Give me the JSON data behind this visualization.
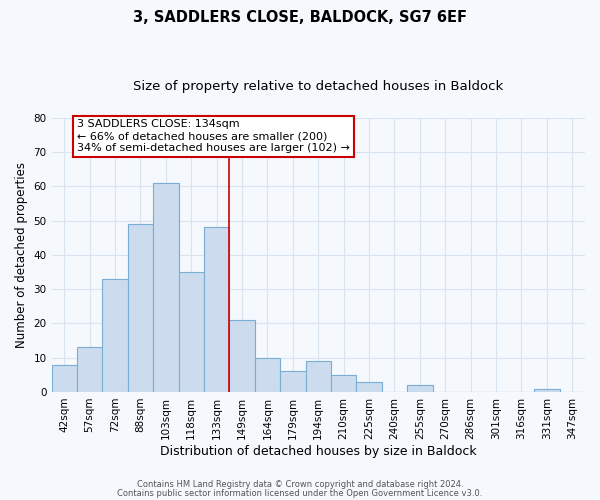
{
  "title": "3, SADDLERS CLOSE, BALDOCK, SG7 6EF",
  "subtitle": "Size of property relative to detached houses in Baldock",
  "xlabel": "Distribution of detached houses by size in Baldock",
  "ylabel": "Number of detached properties",
  "bar_labels": [
    "42sqm",
    "57sqm",
    "72sqm",
    "88sqm",
    "103sqm",
    "118sqm",
    "133sqm",
    "149sqm",
    "164sqm",
    "179sqm",
    "194sqm",
    "210sqm",
    "225sqm",
    "240sqm",
    "255sqm",
    "270sqm",
    "286sqm",
    "301sqm",
    "316sqm",
    "331sqm",
    "347sqm"
  ],
  "bar_values": [
    8,
    13,
    33,
    49,
    61,
    35,
    48,
    21,
    10,
    6,
    9,
    5,
    3,
    0,
    2,
    0,
    0,
    0,
    0,
    1,
    0
  ],
  "bar_color": "#ccdcee",
  "bar_edge_color": "#7aadd4",
  "vline_x": 6.5,
  "vline_color": "#cc0000",
  "annotation_line1": "3 SADDLERS CLOSE: 134sqm",
  "annotation_line2": "← 66% of detached houses are smaller (200)",
  "annotation_line3": "34% of semi-detached houses are larger (102) →",
  "annotation_box_edgecolor": "#cc0000",
  "ylim": [
    0,
    80
  ],
  "yticks": [
    0,
    10,
    20,
    30,
    40,
    50,
    60,
    70,
    80
  ],
  "footer1": "Contains HM Land Registry data © Crown copyright and database right 2024.",
  "footer2": "Contains public sector information licensed under the Open Government Licence v3.0.",
  "background_color": "#f5f8fd",
  "plot_bg_color": "#f5f8fd",
  "grid_color": "#d8e4f0",
  "title_fontsize": 10.5,
  "subtitle_fontsize": 9.5,
  "tick_fontsize": 7.5,
  "ylabel_fontsize": 8.5,
  "xlabel_fontsize": 9
}
